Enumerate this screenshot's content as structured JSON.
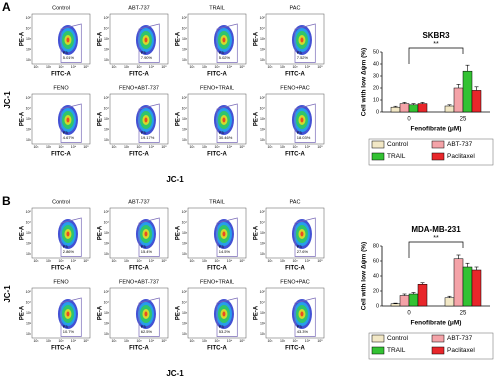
{
  "panels": [
    {
      "label": "A",
      "y_axis_label": "JC-1",
      "x_axis_label": "JC-1",
      "plot_y_label": "PE-A",
      "plot_x_label": "FITC-A",
      "flow_plots": [
        {
          "title": "Control",
          "gate": "P3",
          "percent": "5.01%"
        },
        {
          "title": "ABT-737",
          "gate": "P3",
          "percent": "7.90%"
        },
        {
          "title": "TRAIL",
          "gate": "P3",
          "percent": "5.02%"
        },
        {
          "title": "PAC",
          "gate": "P3",
          "percent": "7.52%"
        },
        {
          "title": "FENO",
          "gate": "P3",
          "percent": "4.67%"
        },
        {
          "title": "FENO+ABT-737",
          "gate": "P3",
          "percent": "19.17%"
        },
        {
          "title": "FENO+TRAIL",
          "gate": "P3",
          "percent": "30.46%"
        },
        {
          "title": "FENO+PAC",
          "gate": "P3",
          "percent": "18.03%"
        }
      ]
    },
    {
      "label": "B",
      "y_axis_label": "JC-1",
      "x_axis_label": "JC-1",
      "plot_y_label": "PE-A",
      "plot_x_label": "FITC-A",
      "flow_plots": [
        {
          "title": "Control",
          "gate": "P3",
          "percent": "2.86%"
        },
        {
          "title": "ABT-737",
          "gate": "P3",
          "percent": "15.4%"
        },
        {
          "title": "TRAIL",
          "gate": "P3",
          "percent": "14.5%"
        },
        {
          "title": "PAC",
          "gate": "P3",
          "percent": "27.6%"
        },
        {
          "title": "FENO",
          "gate": "P3",
          "percent": "10.7%"
        },
        {
          "title": "FENO+ABT-737",
          "gate": "P3",
          "percent": "62.5%"
        },
        {
          "title": "FENO+TRAIL",
          "gate": "P3",
          "percent": "53.2%"
        },
        {
          "title": "FENO+PAC",
          "gate": "P3",
          "percent": "43.3%"
        }
      ]
    }
  ],
  "flow_axis_ticks": [
    "10¹",
    "10²",
    "10³",
    "10⁴",
    "10⁵"
  ],
  "chart_data": [
    {
      "type": "bar",
      "title": "SKBR3",
      "y_label": "Cell with low Δψm (%)",
      "x_label": "Fenofibrate (μM)",
      "categories": [
        "0",
        "25"
      ],
      "annotation": "**",
      "series": [
        {
          "name": "Control",
          "color": "#f2e8c6",
          "values": [
            4,
            5
          ],
          "errors": [
            0.8,
            1
          ]
        },
        {
          "name": "ABT-737",
          "color": "#f4a3a8",
          "values": [
            7,
            20
          ],
          "errors": [
            1,
            3
          ]
        },
        {
          "name": "TRAIL",
          "color": "#33c233",
          "values": [
            6,
            34
          ],
          "errors": [
            1,
            5
          ]
        },
        {
          "name": "Paclitaxel",
          "color": "#e8262a",
          "values": [
            7,
            18
          ],
          "errors": [
            1,
            3
          ]
        }
      ],
      "ylim": [
        0,
        50
      ],
      "yticks": [
        0,
        10,
        20,
        30,
        40,
        50
      ]
    },
    {
      "type": "bar",
      "title": "MDA-MB-231",
      "y_label": "Cell with low Δψm (%)",
      "x_label": "Fenofibrate (μM)",
      "categories": [
        "0",
        "25"
      ],
      "annotation": "**",
      "series": [
        {
          "name": "Control",
          "color": "#f2e8c6",
          "values": [
            3,
            11
          ],
          "errors": [
            0.8,
            2
          ]
        },
        {
          "name": "ABT-737",
          "color": "#f4a3a8",
          "values": [
            14,
            63
          ],
          "errors": [
            2,
            5
          ]
        },
        {
          "name": "TRAIL",
          "color": "#33c233",
          "values": [
            16,
            52
          ],
          "errors": [
            2,
            5
          ]
        },
        {
          "name": "Paclitaxel",
          "color": "#e8262a",
          "values": [
            29,
            48
          ],
          "errors": [
            2,
            4
          ]
        }
      ],
      "ylim": [
        0,
        80
      ],
      "yticks": [
        0,
        20,
        40,
        60,
        80
      ]
    }
  ]
}
